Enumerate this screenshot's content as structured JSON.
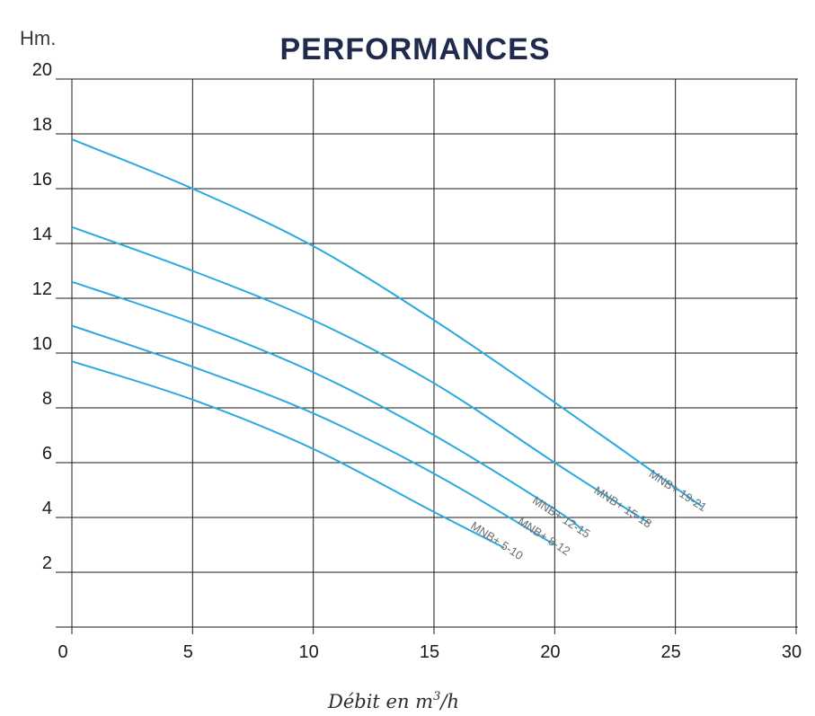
{
  "chart_data": {
    "type": "line",
    "title": "PERFORMANCES",
    "ylabel": "Hm.",
    "xlabel": "Débit en m",
    "xlabel_sup": "3",
    "xlabel_tail": "/h",
    "xlim": [
      0,
      30
    ],
    "ylim": [
      0,
      20
    ],
    "xticks": [
      "0",
      "5",
      "10",
      "15",
      "20",
      "25",
      "30"
    ],
    "yticks": [
      "2",
      "4",
      "6",
      "8",
      "10",
      "12",
      "14",
      "16",
      "18",
      "20"
    ],
    "grid": true,
    "line_color": "#2aa9e0",
    "series": [
      {
        "name": "MNB+ 5-10",
        "x": [
          0,
          5,
          10,
          15,
          17.9
        ],
        "y": [
          9.7,
          8.3,
          6.5,
          4.2,
          2.9
        ]
      },
      {
        "name": "MNB+ 8-12",
        "x": [
          0,
          5,
          10,
          15,
          20
        ],
        "y": [
          11.0,
          9.5,
          7.8,
          5.6,
          3.0
        ]
      },
      {
        "name": "MNB+ 12-15",
        "x": [
          0,
          5,
          10,
          15,
          20,
          21.2
        ],
        "y": [
          12.6,
          11.1,
          9.3,
          7.0,
          4.3,
          3.5
        ]
      },
      {
        "name": "MNB+ 15-18",
        "x": [
          0,
          5,
          10,
          15,
          20,
          23.9
        ],
        "y": [
          14.6,
          13.0,
          11.2,
          8.9,
          6.0,
          3.8
        ]
      },
      {
        "name": "MNB+ 19-21",
        "x": [
          0,
          5,
          10,
          15,
          20,
          26.1
        ],
        "y": [
          17.8,
          16.0,
          13.9,
          11.2,
          8.2,
          4.4
        ]
      }
    ]
  }
}
